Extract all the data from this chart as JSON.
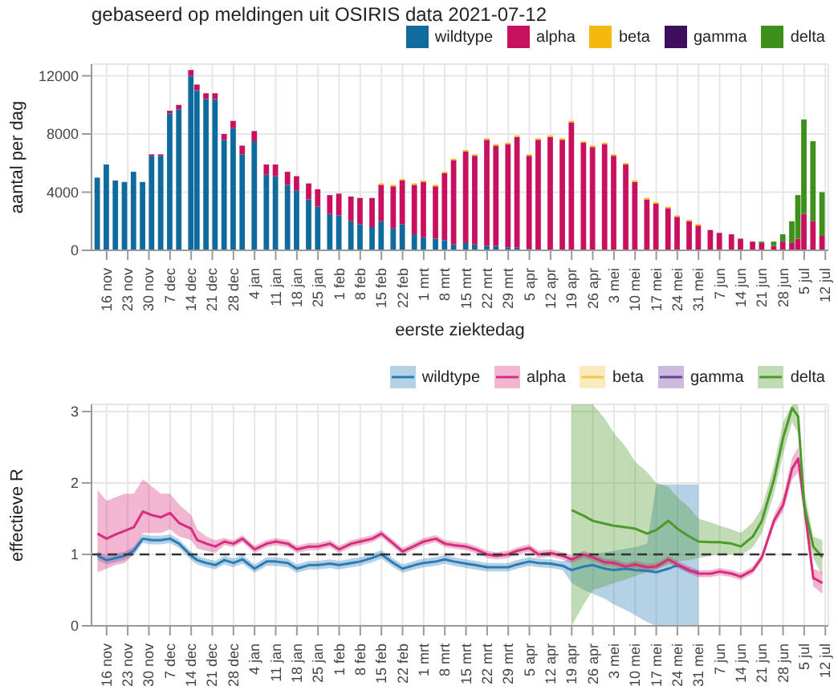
{
  "chart_data": [
    {
      "type": "bar",
      "title": "gebaseerd op meldingen uit OSIRIS data 2021-07-12",
      "xlabel": "eerste ziektedag",
      "ylabel": "aantal per dag",
      "stacked": true,
      "grid": true,
      "legend": "top right",
      "x": [
        "2020-11-13",
        "2020-11-16",
        "2020-11-19",
        "2020-11-22",
        "2020-11-25",
        "2020-11-28",
        "2020-12-01",
        "2020-12-04",
        "2020-12-07",
        "2020-12-10",
        "2020-12-14",
        "2020-12-16",
        "2020-12-19",
        "2020-12-22",
        "2020-12-25",
        "2020-12-28",
        "2020-12-31",
        "2021-01-04",
        "2021-01-08",
        "2021-01-11",
        "2021-01-15",
        "2021-01-18",
        "2021-01-22",
        "2021-01-25",
        "2021-01-29",
        "2021-02-01",
        "2021-02-05",
        "2021-02-08",
        "2021-02-12",
        "2021-02-15",
        "2021-02-19",
        "2021-02-22",
        "2021-02-26",
        "2021-03-01",
        "2021-03-05",
        "2021-03-08",
        "2021-03-11",
        "2021-03-15",
        "2021-03-18",
        "2021-03-22",
        "2021-03-25",
        "2021-03-29",
        "2021-04-01",
        "2021-04-05",
        "2021-04-08",
        "2021-04-12",
        "2021-04-16",
        "2021-04-19",
        "2021-04-23",
        "2021-04-26",
        "2021-04-30",
        "2021-05-03",
        "2021-05-07",
        "2021-05-10",
        "2021-05-14",
        "2021-05-17",
        "2021-05-21",
        "2021-05-24",
        "2021-05-28",
        "2021-05-31",
        "2021-06-04",
        "2021-06-07",
        "2021-06-11",
        "2021-06-14",
        "2021-06-18",
        "2021-06-21",
        "2021-06-25",
        "2021-06-28",
        "2021-07-01",
        "2021-07-03",
        "2021-07-05",
        "2021-07-08",
        "2021-07-11"
      ],
      "xlim": [
        "2020-11-11",
        "2021-07-13"
      ],
      "xticks": [
        {
          "value": "2020-11-16",
          "label": "16 nov"
        },
        {
          "value": "2020-11-23",
          "label": "23 nov"
        },
        {
          "value": "2020-11-30",
          "label": "30 nov"
        },
        {
          "value": "2020-12-07",
          "label": "7 dec"
        },
        {
          "value": "2020-12-14",
          "label": "14 dec"
        },
        {
          "value": "2020-12-21",
          "label": "21 dec"
        },
        {
          "value": "2020-12-28",
          "label": "28 dec"
        },
        {
          "value": "2021-01-04",
          "label": "4 jan"
        },
        {
          "value": "2021-01-11",
          "label": "11 jan"
        },
        {
          "value": "2021-01-18",
          "label": "18 jan"
        },
        {
          "value": "2021-01-25",
          "label": "25 jan"
        },
        {
          "value": "2021-02-01",
          "label": "1 feb"
        },
        {
          "value": "2021-02-08",
          "label": "8 feb"
        },
        {
          "value": "2021-02-15",
          "label": "15 feb"
        },
        {
          "value": "2021-02-22",
          "label": "22 feb"
        },
        {
          "value": "2021-03-01",
          "label": "1 mrt"
        },
        {
          "value": "2021-03-08",
          "label": "8 mrt"
        },
        {
          "value": "2021-03-15",
          "label": "15 mrt"
        },
        {
          "value": "2021-03-22",
          "label": "22 mrt"
        },
        {
          "value": "2021-03-29",
          "label": "29 mrt"
        },
        {
          "value": "2021-04-05",
          "label": "5 apr"
        },
        {
          "value": "2021-04-12",
          "label": "12 apr"
        },
        {
          "value": "2021-04-19",
          "label": "19 apr"
        },
        {
          "value": "2021-04-26",
          "label": "26 apr"
        },
        {
          "value": "2021-05-03",
          "label": "3 mei"
        },
        {
          "value": "2021-05-10",
          "label": "10 mei"
        },
        {
          "value": "2021-05-17",
          "label": "17 mei"
        },
        {
          "value": "2021-05-24",
          "label": "24 mei"
        },
        {
          "value": "2021-05-31",
          "label": "31 mei"
        },
        {
          "value": "2021-06-07",
          "label": "7 jun"
        },
        {
          "value": "2021-06-14",
          "label": "14 jun"
        },
        {
          "value": "2021-06-21",
          "label": "21 jun"
        },
        {
          "value": "2021-06-28",
          "label": "28 jun"
        },
        {
          "value": "2021-07-05",
          "label": "5 jul"
        },
        {
          "value": "2021-07-12",
          "label": "12 jul"
        }
      ],
      "ylim": [
        0,
        12800
      ],
      "yticks": [
        0,
        4000,
        8000,
        12000
      ],
      "series": [
        {
          "name": "wildtype",
          "color": "#0f6a9e",
          "values": [
            5000,
            5900,
            4800,
            4700,
            5400,
            4700,
            6500,
            6500,
            9400,
            9700,
            12000,
            11000,
            10400,
            10400,
            7600,
            8400,
            6600,
            7500,
            5200,
            5100,
            4500,
            4100,
            3500,
            3000,
            2500,
            2400,
            2000,
            1800,
            1600,
            2000,
            1500,
            1800,
            1100,
            900,
            800,
            700,
            400,
            500,
            400,
            300,
            300,
            200,
            200,
            100,
            null,
            null,
            null,
            null,
            null,
            null,
            null,
            null,
            null,
            null,
            null,
            null,
            null,
            null,
            null,
            null,
            null,
            null,
            null,
            null,
            null,
            null,
            null,
            null,
            null,
            null,
            null,
            null,
            null
          ]
        },
        {
          "name": "alpha",
          "color": "#c8105f",
          "values": [
            null,
            null,
            null,
            null,
            null,
            null,
            100,
            100,
            200,
            300,
            400,
            400,
            400,
            400,
            400,
            500,
            600,
            700,
            700,
            800,
            900,
            1000,
            1100,
            1200,
            1300,
            1500,
            1700,
            1800,
            2000,
            2500,
            2900,
            3000,
            3400,
            3800,
            3600,
            4600,
            5800,
            6300,
            6100,
            7300,
            6900,
            7100,
            7600,
            6400,
            7600,
            7800,
            7600,
            8800,
            7400,
            7100,
            7300,
            6500,
            5900,
            4700,
            3500,
            3200,
            2900,
            2300,
            2000,
            1700,
            1400,
            1200,
            1100,
            800,
            600,
            500,
            300,
            600,
            500,
            800,
            2500,
            2000,
            1000
          ]
        },
        {
          "name": "beta",
          "color": "#f5b80f",
          "values": [
            null,
            null,
            null,
            null,
            null,
            null,
            null,
            null,
            null,
            null,
            null,
            null,
            null,
            null,
            null,
            null,
            null,
            null,
            null,
            null,
            null,
            null,
            null,
            null,
            null,
            null,
            null,
            null,
            null,
            100,
            100,
            100,
            100,
            100,
            100,
            100,
            100,
            100,
            100,
            100,
            100,
            100,
            100,
            100,
            100,
            100,
            100,
            100,
            100,
            100,
            100,
            100,
            100,
            100,
            100,
            100,
            100,
            100,
            100,
            100,
            null,
            null,
            null,
            null,
            null,
            null,
            null,
            null,
            null,
            null,
            null,
            null,
            null
          ]
        },
        {
          "name": "gamma",
          "color": "#3d0f5e",
          "values": [
            null,
            null,
            null,
            null,
            null,
            null,
            null,
            null,
            null,
            null,
            null,
            null,
            null,
            null,
            null,
            null,
            null,
            null,
            null,
            null,
            null,
            null,
            null,
            null,
            null,
            null,
            null,
            null,
            null,
            null,
            null,
            null,
            null,
            null,
            null,
            null,
            null,
            null,
            null,
            null,
            null,
            null,
            null,
            null,
            null,
            null,
            null,
            null,
            null,
            null,
            null,
            null,
            null,
            null,
            null,
            null,
            null,
            null,
            null,
            null,
            null,
            null,
            null,
            null,
            null,
            null,
            null,
            null,
            null,
            null,
            null,
            null,
            null
          ]
        },
        {
          "name": "delta",
          "color": "#3f8f1c",
          "values": [
            null,
            null,
            null,
            null,
            null,
            null,
            null,
            null,
            null,
            null,
            null,
            null,
            null,
            null,
            null,
            null,
            null,
            null,
            null,
            null,
            null,
            null,
            null,
            null,
            null,
            null,
            null,
            null,
            null,
            null,
            null,
            null,
            null,
            null,
            null,
            null,
            null,
            null,
            null,
            null,
            null,
            null,
            null,
            null,
            null,
            null,
            null,
            null,
            null,
            null,
            null,
            null,
            null,
            null,
            null,
            null,
            null,
            null,
            null,
            null,
            null,
            null,
            null,
            null,
            null,
            100,
            300,
            500,
            1500,
            3000,
            6500,
            5500,
            3000
          ]
        }
      ]
    },
    {
      "type": "line",
      "ylabel": "effectieve R",
      "grid": true,
      "legend": "top right",
      "x": [
        "2020-11-13",
        "2020-11-16",
        "2020-11-19",
        "2020-11-22",
        "2020-11-25",
        "2020-11-28",
        "2020-12-01",
        "2020-12-04",
        "2020-12-07",
        "2020-12-10",
        "2020-12-14",
        "2020-12-16",
        "2020-12-19",
        "2020-12-22",
        "2020-12-25",
        "2020-12-28",
        "2020-12-31",
        "2021-01-04",
        "2021-01-08",
        "2021-01-11",
        "2021-01-15",
        "2021-01-18",
        "2021-01-22",
        "2021-01-25",
        "2021-01-29",
        "2021-02-01",
        "2021-02-05",
        "2021-02-08",
        "2021-02-12",
        "2021-02-15",
        "2021-02-19",
        "2021-02-22",
        "2021-02-26",
        "2021-03-01",
        "2021-03-05",
        "2021-03-08",
        "2021-03-11",
        "2021-03-15",
        "2021-03-18",
        "2021-03-22",
        "2021-03-25",
        "2021-03-29",
        "2021-04-01",
        "2021-04-05",
        "2021-04-08",
        "2021-04-12",
        "2021-04-16",
        "2021-04-19",
        "2021-04-23",
        "2021-04-26",
        "2021-04-30",
        "2021-05-03",
        "2021-05-07",
        "2021-05-10",
        "2021-05-14",
        "2021-05-17",
        "2021-05-21",
        "2021-05-24",
        "2021-05-28",
        "2021-05-31",
        "2021-06-04",
        "2021-06-07",
        "2021-06-11",
        "2021-06-14",
        "2021-06-18",
        "2021-06-21",
        "2021-06-25",
        "2021-06-28",
        "2021-07-01",
        "2021-07-03",
        "2021-07-05",
        "2021-07-08",
        "2021-07-11"
      ],
      "xlim": [
        "2020-11-11",
        "2021-07-13"
      ],
      "xticks": [
        {
          "value": "2020-11-16",
          "label": "16 nov"
        },
        {
          "value": "2020-11-23",
          "label": "23 nov"
        },
        {
          "value": "2020-11-30",
          "label": "30 nov"
        },
        {
          "value": "2020-12-07",
          "label": "7 dec"
        },
        {
          "value": "2020-12-14",
          "label": "14 dec"
        },
        {
          "value": "2020-12-21",
          "label": "21 dec"
        },
        {
          "value": "2020-12-28",
          "label": "28 dec"
        },
        {
          "value": "2021-01-04",
          "label": "4 jan"
        },
        {
          "value": "2021-01-11",
          "label": "11 jan"
        },
        {
          "value": "2021-01-18",
          "label": "18 jan"
        },
        {
          "value": "2021-01-25",
          "label": "25 jan"
        },
        {
          "value": "2021-02-01",
          "label": "1 feb"
        },
        {
          "value": "2021-02-08",
          "label": "8 feb"
        },
        {
          "value": "2021-02-15",
          "label": "15 feb"
        },
        {
          "value": "2021-02-22",
          "label": "22 feb"
        },
        {
          "value": "2021-03-01",
          "label": "1 mrt"
        },
        {
          "value": "2021-03-08",
          "label": "8 mrt"
        },
        {
          "value": "2021-03-15",
          "label": "15 mrt"
        },
        {
          "value": "2021-03-22",
          "label": "22 mrt"
        },
        {
          "value": "2021-03-29",
          "label": "29 mrt"
        },
        {
          "value": "2021-04-05",
          "label": "5 apr"
        },
        {
          "value": "2021-04-12",
          "label": "12 apr"
        },
        {
          "value": "2021-04-19",
          "label": "19 apr"
        },
        {
          "value": "2021-04-26",
          "label": "26 apr"
        },
        {
          "value": "2021-05-03",
          "label": "3 mei"
        },
        {
          "value": "2021-05-10",
          "label": "10 mei"
        },
        {
          "value": "2021-05-17",
          "label": "17 mei"
        },
        {
          "value": "2021-05-24",
          "label": "24 mei"
        },
        {
          "value": "2021-05-31",
          "label": "31 mei"
        },
        {
          "value": "2021-06-07",
          "label": "7 jun"
        },
        {
          "value": "2021-06-14",
          "label": "14 jun"
        },
        {
          "value": "2021-06-21",
          "label": "21 jun"
        },
        {
          "value": "2021-06-28",
          "label": "28 jun"
        },
        {
          "value": "2021-07-05",
          "label": "5 jul"
        },
        {
          "value": "2021-07-12",
          "label": "12 jul"
        }
      ],
      "ylim": [
        0,
        3.1
      ],
      "yticks": [
        0,
        1,
        2,
        3
      ],
      "ref_lines": [
        {
          "axis": "y",
          "value": 1,
          "color": "#333333",
          "line_style": "dashed"
        }
      ],
      "series": [
        {
          "name": "wildtype",
          "color": "#2b7bb5",
          "values": [
            0.98,
            0.92,
            0.95,
            0.98,
            1.05,
            1.22,
            1.2,
            1.2,
            1.22,
            1.15,
            0.98,
            0.92,
            0.88,
            0.85,
            0.92,
            0.88,
            0.93,
            0.8,
            0.9,
            0.9,
            0.88,
            0.8,
            0.85,
            0.85,
            0.87,
            0.85,
            0.88,
            0.9,
            0.95,
            1.0,
            0.88,
            0.8,
            0.85,
            0.88,
            0.9,
            0.93,
            0.9,
            0.87,
            0.85,
            0.82,
            0.82,
            0.82,
            0.86,
            0.9,
            0.88,
            0.87,
            0.84,
            0.78,
            0.83,
            0.85,
            0.8,
            0.78,
            0.8,
            0.78,
            0.77,
            0.75,
            0.8,
            0.85,
            0.77,
            0.75,
            null,
            null,
            null,
            null,
            null,
            null,
            null,
            null,
            null,
            null,
            null,
            null,
            null
          ],
          "lower": [
            0.92,
            0.86,
            0.89,
            0.92,
            0.99,
            1.16,
            1.14,
            1.14,
            1.16,
            1.09,
            0.92,
            0.86,
            0.82,
            0.79,
            0.86,
            0.82,
            0.87,
            0.74,
            0.84,
            0.84,
            0.82,
            0.74,
            0.79,
            0.79,
            0.81,
            0.79,
            0.82,
            0.84,
            0.89,
            0.94,
            0.82,
            0.74,
            0.79,
            0.82,
            0.84,
            0.87,
            0.84,
            0.81,
            0.79,
            0.76,
            0.76,
            0.76,
            0.8,
            0.84,
            0.82,
            0.81,
            0.78,
            0.6,
            0.5,
            0.45,
            0.38,
            0.3,
            0.22,
            0.15,
            0.05,
            0,
            0,
            0,
            0,
            0,
            null,
            null,
            null,
            null,
            null,
            null,
            null,
            null,
            null,
            null,
            null,
            null,
            null
          ],
          "upper": [
            1.04,
            0.98,
            1.01,
            1.04,
            1.11,
            1.28,
            1.26,
            1.26,
            1.28,
            1.21,
            1.04,
            0.98,
            0.94,
            0.91,
            0.98,
            0.94,
            0.99,
            0.86,
            0.96,
            0.96,
            0.94,
            0.86,
            0.91,
            0.91,
            0.93,
            0.91,
            0.94,
            0.96,
            1.01,
            1.06,
            0.94,
            0.86,
            0.91,
            0.94,
            0.96,
            0.99,
            0.96,
            0.93,
            0.91,
            0.88,
            0.88,
            0.88,
            0.92,
            0.96,
            0.94,
            0.93,
            0.9,
            0.95,
            1.0,
            1.0,
            1.03,
            1.05,
            1.08,
            1.1,
            1.15,
            1.98,
            1.98,
            1.98,
            1.98,
            1.98,
            null,
            null,
            null,
            null,
            null,
            null,
            null,
            null,
            null,
            null,
            null,
            null,
            null
          ]
        },
        {
          "name": "alpha",
          "color": "#d62d7d",
          "values": [
            1.29,
            1.22,
            1.28,
            1.33,
            1.38,
            1.6,
            1.55,
            1.52,
            1.58,
            1.44,
            1.36,
            1.2,
            1.15,
            1.11,
            1.18,
            1.15,
            1.22,
            1.07,
            1.15,
            1.18,
            1.15,
            1.07,
            1.11,
            1.11,
            1.15,
            1.07,
            1.15,
            1.18,
            1.22,
            1.29,
            1.15,
            1.04,
            1.12,
            1.18,
            1.22,
            1.15,
            1.13,
            1.11,
            1.07,
            1.0,
            0.98,
            1.0,
            1.05,
            1.09,
            1.0,
            1.02,
            0.98,
            0.93,
            1.0,
            0.96,
            0.89,
            0.88,
            0.83,
            0.86,
            0.82,
            0.83,
            0.93,
            0.86,
            0.78,
            0.73,
            0.73,
            0.76,
            0.73,
            0.69,
            0.78,
            0.96,
            1.47,
            1.69,
            2.2,
            2.34,
            1.69,
            0.67,
            0.6
          ],
          "lower": [
            0.75,
            0.8,
            0.85,
            0.88,
            1.0,
            1.3,
            1.3,
            1.3,
            1.35,
            1.25,
            1.2,
            1.08,
            1.05,
            1.02,
            1.13,
            1.1,
            1.17,
            1.02,
            1.1,
            1.13,
            1.1,
            1.02,
            1.06,
            1.06,
            1.1,
            1.02,
            1.1,
            1.13,
            1.17,
            1.24,
            1.1,
            0.99,
            1.07,
            1.13,
            1.17,
            1.1,
            1.08,
            1.06,
            1.02,
            0.95,
            0.93,
            0.95,
            1,
            1.04,
            0.95,
            0.97,
            0.93,
            0.88,
            0.95,
            0.91,
            0.84,
            0.83,
            0.78,
            0.81,
            0.77,
            0.78,
            0.88,
            0.81,
            0.73,
            0.68,
            0.68,
            0.71,
            0.68,
            0.64,
            0.73,
            0.91,
            1.4,
            1.6,
            2.05,
            2.15,
            1.55,
            0.55,
            0.45
          ],
          "upper": [
            1.9,
            1.75,
            1.8,
            1.85,
            1.85,
            2.05,
            1.95,
            1.85,
            1.85,
            1.7,
            1.55,
            1.35,
            1.25,
            1.2,
            1.23,
            1.2,
            1.27,
            1.12,
            1.2,
            1.23,
            1.2,
            1.12,
            1.16,
            1.16,
            1.2,
            1.12,
            1.2,
            1.23,
            1.27,
            1.34,
            1.2,
            1.09,
            1.17,
            1.23,
            1.27,
            1.2,
            1.18,
            1.16,
            1.12,
            1.05,
            1.03,
            1.05,
            1.1,
            1.14,
            1.05,
            1.07,
            1.03,
            0.98,
            1.05,
            1.01,
            0.94,
            0.93,
            0.88,
            0.91,
            0.87,
            0.88,
            0.98,
            0.91,
            0.83,
            0.78,
            0.78,
            0.81,
            0.78,
            0.74,
            0.83,
            1.01,
            1.55,
            1.8,
            2.35,
            2.5,
            1.85,
            0.8,
            0.75
          ]
        },
        {
          "name": "beta",
          "color": "#f2c744",
          "values": [
            null,
            null,
            null,
            null,
            null,
            null,
            null,
            null,
            null,
            null,
            null,
            null,
            null,
            null,
            null,
            null,
            null,
            null,
            null,
            null,
            null,
            null,
            null,
            null,
            null,
            null,
            null,
            null,
            null,
            null,
            null,
            null,
            null,
            null,
            null,
            null,
            null,
            null,
            null,
            null,
            null,
            null,
            null,
            null,
            null,
            null,
            null,
            null,
            null,
            null,
            null,
            null,
            null,
            null,
            null,
            null,
            null,
            null,
            null,
            null,
            null,
            null,
            null,
            null,
            null,
            null,
            null,
            null,
            null,
            null,
            null,
            null,
            null
          ]
        },
        {
          "name": "gamma",
          "color": "#6a3d9a",
          "values": [
            null,
            null,
            null,
            null,
            null,
            null,
            null,
            null,
            null,
            null,
            null,
            null,
            null,
            null,
            null,
            null,
            null,
            null,
            null,
            null,
            null,
            null,
            null,
            null,
            null,
            null,
            null,
            null,
            null,
            null,
            null,
            null,
            null,
            null,
            null,
            null,
            null,
            null,
            null,
            null,
            null,
            null,
            null,
            null,
            null,
            null,
            null,
            null,
            null,
            null,
            null,
            null,
            null,
            null,
            null,
            null,
            null,
            null,
            null,
            null,
            null,
            null,
            null,
            null,
            null,
            null,
            null,
            null,
            null,
            null,
            null,
            null,
            null
          ]
        },
        {
          "name": "delta",
          "color": "#4c9a2a",
          "values": [
            null,
            null,
            null,
            null,
            null,
            null,
            null,
            null,
            null,
            null,
            null,
            null,
            null,
            null,
            null,
            null,
            null,
            null,
            null,
            null,
            null,
            null,
            null,
            null,
            null,
            null,
            null,
            null,
            null,
            null,
            null,
            null,
            null,
            null,
            null,
            null,
            null,
            null,
            null,
            null,
            null,
            null,
            null,
            null,
            null,
            null,
            null,
            1.62,
            1.54,
            1.47,
            1.43,
            1.4,
            1.38,
            1.36,
            1.29,
            1.34,
            1.47,
            1.36,
            1.25,
            1.18,
            1.17,
            1.17,
            1.15,
            1.11,
            1.25,
            1.47,
            2.05,
            2.63,
            3.05,
            2.93,
            1.69,
            1.11,
            0.96
          ],
          "lower": [
            null,
            null,
            null,
            null,
            null,
            null,
            null,
            null,
            null,
            null,
            null,
            null,
            null,
            null,
            null,
            null,
            null,
            null,
            null,
            null,
            null,
            null,
            null,
            null,
            null,
            null,
            null,
            null,
            null,
            null,
            null,
            null,
            null,
            null,
            null,
            null,
            null,
            null,
            null,
            null,
            null,
            null,
            null,
            null,
            null,
            null,
            null,
            0,
            0.3,
            0.5,
            0.55,
            0.6,
            0.65,
            0.7,
            0.75,
            0.8,
            0.85,
            0.9,
            0.92,
            0.95,
            0.98,
            1.0,
            1.0,
            0.98,
            1.1,
            1.3,
            1.85,
            2.4,
            2.85,
            2.7,
            1.5,
            0.95,
            0.7
          ],
          "upper": [
            null,
            null,
            null,
            null,
            null,
            null,
            null,
            null,
            null,
            null,
            null,
            null,
            null,
            null,
            null,
            null,
            null,
            null,
            null,
            null,
            null,
            null,
            null,
            null,
            null,
            null,
            null,
            null,
            null,
            null,
            null,
            null,
            null,
            null,
            null,
            null,
            null,
            null,
            null,
            null,
            null,
            null,
            null,
            null,
            null,
            null,
            null,
            3.1,
            3.1,
            3.1,
            2.9,
            2.7,
            2.5,
            2.3,
            2.15,
            2.0,
            1.95,
            1.8,
            1.65,
            1.5,
            1.45,
            1.4,
            1.35,
            1.3,
            1.45,
            1.65,
            2.25,
            2.85,
            3.1,
            3.1,
            1.9,
            1.25,
            1.2
          ]
        }
      ]
    }
  ]
}
